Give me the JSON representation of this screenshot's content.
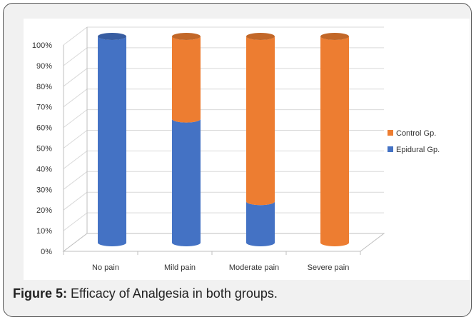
{
  "chart_data": {
    "type": "bar",
    "stacked": true,
    "three_d": true,
    "categories": [
      "No pain",
      "Mild pain",
      "Moderate pain",
      "Severe pain"
    ],
    "series": [
      {
        "name": "Epidural Gp.",
        "color": "#4472c4",
        "values": [
          100,
          60,
          20,
          0
        ]
      },
      {
        "name": "Control Gp.",
        "color": "#ed7d31",
        "values": [
          0,
          40,
          80,
          100
        ]
      }
    ],
    "y_ticks": [
      "0%",
      "10%",
      "20%",
      "30%",
      "40%",
      "50%",
      "60%",
      "70%",
      "80%",
      "90%",
      "100%"
    ],
    "ylim": [
      0,
      100
    ],
    "grid": true,
    "legend_position": "right"
  },
  "caption": {
    "label": "Figure 5:",
    "text": " Efficacy of Analgesia in both groups."
  }
}
